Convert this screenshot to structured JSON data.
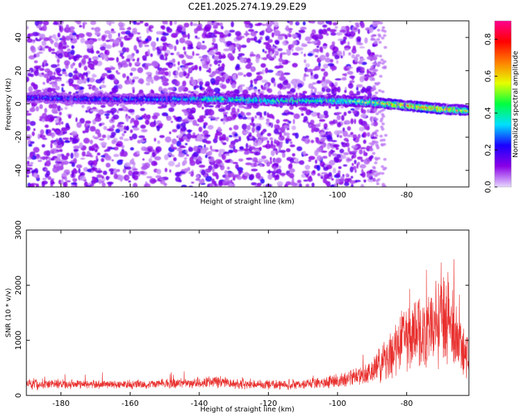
{
  "title": "C2E1.2025.274.19.29.E29",
  "chart_data": [
    {
      "type": "heatmap",
      "xlabel": "Height of straight line (km)",
      "ylabel": "Frequency (Hz)",
      "xlim": [
        -190,
        -62
      ],
      "ylim": [
        -50,
        50
      ],
      "xticks": [
        -180,
        -160,
        -140,
        -120,
        -100,
        -80
      ],
      "yticks": [
        -40,
        -20,
        0,
        20,
        40
      ],
      "colorbar": {
        "label": "Normalized spectral amplitude",
        "range": [
          0.0,
          0.9
        ],
        "ticks": [
          0.0,
          0.2,
          0.4,
          0.6,
          0.8
        ],
        "colors": [
          "#e6d8ff",
          "#8a00e6",
          "#1a00ff",
          "#00e0ff",
          "#00ff40",
          "#e6ff00",
          "#ff7f00",
          "#ff0000",
          "#ff0090"
        ]
      },
      "ridge": {
        "description": "narrow band of high amplitude near 0-5 Hz, drifting slightly negative at lower heights",
        "points": [
          [
            -190,
            4
          ],
          [
            -170,
            3
          ],
          [
            -150,
            3
          ],
          [
            -135,
            3
          ],
          [
            -120,
            2
          ],
          [
            -100,
            2
          ],
          [
            -90,
            1
          ],
          [
            -80,
            -1
          ],
          [
            -70,
            -3
          ],
          [
            -62,
            -4
          ]
        ],
        "peak_amplitude": [
          [
            -190,
            0.25
          ],
          [
            -150,
            0.3
          ],
          [
            -135,
            0.45
          ],
          [
            -100,
            0.45
          ],
          [
            -90,
            0.55
          ],
          [
            -80,
            0.75
          ],
          [
            -72,
            0.7
          ],
          [
            -65,
            0.6
          ]
        ]
      },
      "noise_region": {
        "x_from": -190,
        "x_to": -89,
        "typical_amplitude": 0.08
      }
    },
    {
      "type": "line",
      "xlabel": "Height of straight line (km)",
      "ylabel": "SNR (10 * v/v)",
      "xlim": [
        -190,
        -62
      ],
      "ylim": [
        0,
        3000
      ],
      "xticks": [
        -180,
        -160,
        -140,
        -120,
        -100,
        -80
      ],
      "yticks": [
        0,
        1000,
        2000,
        3000
      ],
      "color": "#e8302e",
      "series": [
        {
          "name": "SNR",
          "envelope": {
            "x": [
              -190,
              -180,
              -170,
              -160,
              -150,
              -140,
              -135,
              -130,
              -120,
              -110,
              -100,
              -95,
              -90,
              -88,
              -85,
              -82,
              -80,
              -78,
              -76,
              -74,
              -72,
              -70,
              -68,
              -66,
              -64,
              -62
            ],
            "base": [
              200,
              210,
              200,
              200,
              210,
              230,
              260,
              210,
              200,
              200,
              260,
              330,
              420,
              550,
              700,
              950,
              1150,
              1200,
              1100,
              1200,
              1350,
              1500,
              1300,
              1000,
              900,
              700
            ],
            "amplitude": [
              120,
              100,
              90,
              90,
              100,
              110,
              130,
              100,
              100,
              100,
              140,
              180,
              250,
              350,
              500,
              700,
              800,
              750,
              700,
              800,
              900,
              1200,
              900,
              700,
              600,
              500
            ]
          }
        }
      ]
    }
  ]
}
